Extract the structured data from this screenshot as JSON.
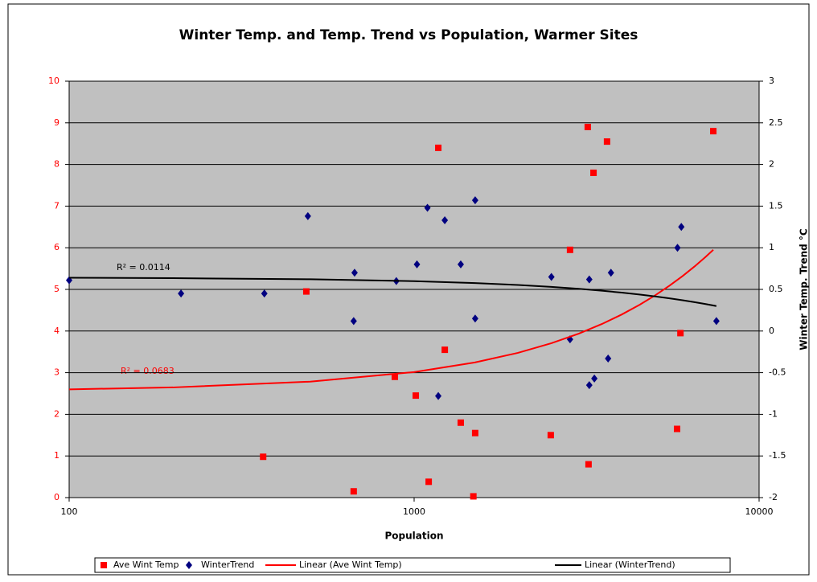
{
  "chart_data": {
    "type": "scatter",
    "title": "Winter Temp. and Temp. Trend vs Population, Warmer Sites",
    "x_label": "Population",
    "y2_label": "Winter Temp. Trend °C",
    "xscale": "log",
    "xlim": [
      100,
      10000
    ],
    "xticks": [
      100,
      1000,
      10000
    ],
    "ylim": [
      0,
      10
    ],
    "yticks": [
      0,
      1,
      2,
      3,
      4,
      5,
      6,
      7,
      8,
      9,
      10
    ],
    "y2lim": [
      -2,
      3
    ],
    "y2ticks": [
      -2,
      -1.5,
      -1,
      -0.5,
      0,
      0.5,
      1,
      1.5,
      2,
      2.5,
      3
    ],
    "grid": true,
    "legend": "bottom",
    "annotations": [
      "R² = 0.0114",
      "R² = 0.0683"
    ],
    "series": [
      {
        "name": "Ave Wint Temp",
        "color": "#ff0000",
        "marker": "square",
        "x": [
          365,
          487,
          668,
          879,
          1011,
          1102,
          1175,
          1227,
          1365,
          1503,
          1485,
          2489,
          2831,
          3186,
          3203,
          3311,
          3624,
          5784,
          5915,
          7366
        ],
        "values": [
          0.98,
          4.95,
          0.15,
          2.9,
          2.45,
          0.38,
          8.4,
          3.55,
          1.8,
          1.55,
          0.03,
          1.5,
          5.95,
          8.9,
          0.8,
          7.8,
          8.55,
          1.65,
          3.95,
          8.8
        ]
      },
      {
        "name": "WinterTrend",
        "color": "#000080",
        "marker": "diamond",
        "axis": "y2",
        "x": [
          100,
          211,
          368,
          492,
          668,
          672,
          888,
          1019,
          1093,
          1175,
          1227,
          1365,
          1503,
          1503,
          2500,
          2831,
          3219,
          3219,
          3330,
          3650,
          3720,
          5800,
          5950,
          7520
        ],
        "values": [
          0.61,
          0.45,
          0.45,
          1.38,
          0.12,
          0.7,
          0.6,
          0.8,
          1.48,
          -0.78,
          1.33,
          0.8,
          1.57,
          0.15,
          0.65,
          -0.1,
          0.62,
          -0.65,
          -0.57,
          -0.33,
          0.7,
          1.0,
          1.25,
          0.12
        ]
      },
      {
        "name": "Linear (Ave Wint Temp)",
        "color": "#ff0000",
        "marker": "line",
        "x": [
          100,
          200,
          500,
          1000,
          1500,
          2000,
          2500,
          3000,
          3500,
          4000,
          4500,
          5000,
          5500,
          6000,
          6500,
          7000,
          7366
        ],
        "values": [
          2.6,
          2.646,
          2.785,
          3.015,
          3.246,
          3.476,
          3.707,
          3.937,
          4.168,
          4.398,
          4.629,
          4.859,
          5.09,
          5.32,
          5.551,
          5.781,
          5.95
        ]
      },
      {
        "name": "Linear (WinterTrend)",
        "color": "#000000",
        "marker": "line",
        "axis": "y2",
        "x": [
          100,
          200,
          500,
          1000,
          1500,
          2000,
          2500,
          3000,
          3500,
          4000,
          4500,
          5000,
          5500,
          6000,
          6500,
          7000,
          7520
        ],
        "values": [
          0.64,
          0.635,
          0.622,
          0.599,
          0.576,
          0.553,
          0.53,
          0.507,
          0.484,
          0.461,
          0.438,
          0.416,
          0.393,
          0.37,
          0.347,
          0.324,
          0.3
        ]
      }
    ]
  }
}
